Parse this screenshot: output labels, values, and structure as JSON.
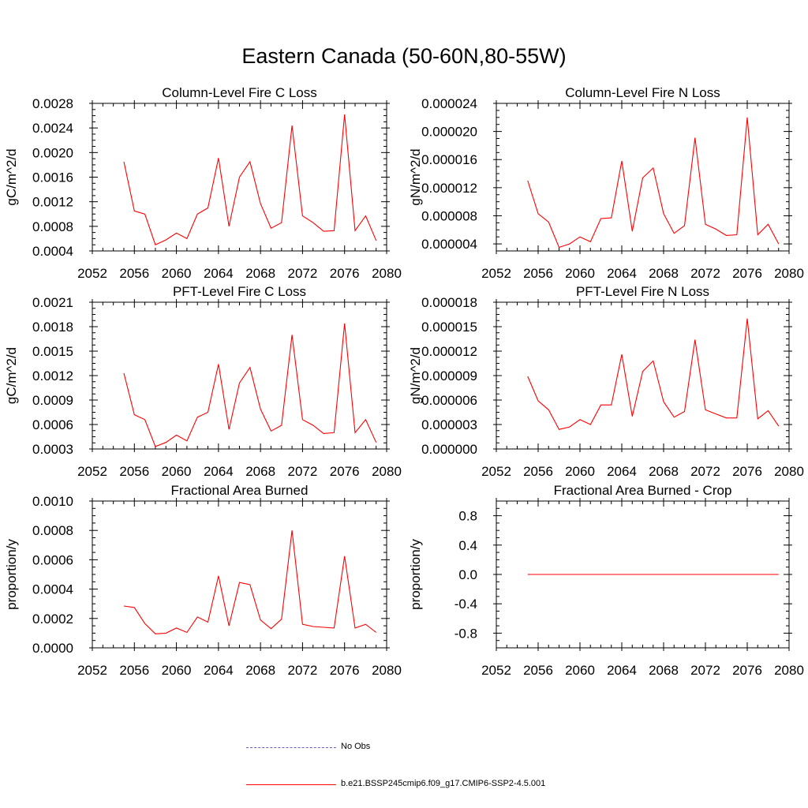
{
  "title": "Eastern Canada (50-60N,80-55W)",
  "series_color": "#ff0000",
  "obs_color": "#6060c0",
  "legend": {
    "obs_label": "No Obs",
    "model_label": "b.e21.BSSP245cmip6.f09_g17.CMIP6-SSP2-4.5.001"
  },
  "chart_data": [
    {
      "type": "line",
      "title": "Column-Level Fire C Loss",
      "ylabel": "gC/m^2/d",
      "xlim": [
        2052,
        2080
      ],
      "x_ticks": [
        "2052",
        "2056",
        "2060",
        "2064",
        "2068",
        "2072",
        "2076",
        "2080"
      ],
      "ylim": [
        0.0004,
        0.0028
      ],
      "y_ticks": [
        "0.0004",
        "0.0008",
        "0.0012",
        "0.0016",
        "0.0020",
        "0.0024",
        "0.0028"
      ],
      "x": [
        2055,
        2056,
        2057,
        2058,
        2059,
        2060,
        2061,
        2062,
        2063,
        2064,
        2065,
        2066,
        2067,
        2068,
        2069,
        2070,
        2071,
        2072,
        2073,
        2074,
        2075,
        2076,
        2077,
        2078,
        2079
      ],
      "series": [
        {
          "values": [
            0.00185,
            0.00105,
            0.001,
            0.0005,
            0.00058,
            0.00069,
            0.0006,
            0.001,
            0.0011,
            0.00191,
            0.0008,
            0.0016,
            0.00185,
            0.00117,
            0.00077,
            0.00086,
            0.00244,
            0.00097,
            0.00086,
            0.00072,
            0.00073,
            0.00262,
            0.00073,
            0.00097,
            0.00057
          ]
        }
      ]
    },
    {
      "type": "line",
      "title": "Column-Level Fire N Loss",
      "ylabel": "gN/m^2/d",
      "xlim": [
        2052,
        2080
      ],
      "x_ticks": [
        "2052",
        "2056",
        "2060",
        "2064",
        "2068",
        "2072",
        "2076",
        "2080"
      ],
      "ylim": [
        3e-06,
        2.4e-05
      ],
      "y_ticks": [
        "0.000004",
        "0.000008",
        "0.000012",
        "0.000016",
        "0.000020",
        "0.000024"
      ],
      "x": [
        2055,
        2056,
        2057,
        2058,
        2059,
        2060,
        2061,
        2062,
        2063,
        2064,
        2065,
        2066,
        2067,
        2068,
        2069,
        2070,
        2071,
        2072,
        2073,
        2074,
        2075,
        2076,
        2077,
        2078,
        2079
      ],
      "series": [
        {
          "values": [
            1.3e-05,
            8.3e-06,
            7.1e-06,
            3.5e-06,
            4e-06,
            5e-06,
            4.3e-06,
            7.6e-06,
            7.7e-06,
            1.58e-05,
            5.8e-06,
            1.34e-05,
            1.48e-05,
            8.3e-06,
            5.5e-06,
            6.6e-06,
            1.91e-05,
            6.8e-06,
            6.1e-06,
            5.2e-06,
            5.3e-06,
            2.2e-05,
            5.3e-06,
            6.8e-06,
            4e-06
          ]
        }
      ]
    },
    {
      "type": "line",
      "title": "PFT-Level Fire C Loss",
      "ylabel": "gC/m^2/d",
      "xlim": [
        2052,
        2080
      ],
      "x_ticks": [
        "2052",
        "2056",
        "2060",
        "2064",
        "2068",
        "2072",
        "2076",
        "2080"
      ],
      "ylim": [
        0.0003,
        0.0021
      ],
      "y_ticks": [
        "0.0003",
        "0.0006",
        "0.0009",
        "0.0012",
        "0.0015",
        "0.0018",
        "0.0021"
      ],
      "x": [
        2055,
        2056,
        2057,
        2058,
        2059,
        2060,
        2061,
        2062,
        2063,
        2064,
        2065,
        2066,
        2067,
        2068,
        2069,
        2070,
        2071,
        2072,
        2073,
        2074,
        2075,
        2076,
        2077,
        2078,
        2079
      ],
      "series": [
        {
          "values": [
            0.00123,
            0.00072,
            0.00066,
            0.00033,
            0.00038,
            0.00047,
            0.0004,
            0.00069,
            0.00075,
            0.00134,
            0.00054,
            0.00111,
            0.0013,
            0.00079,
            0.00052,
            0.00059,
            0.0017,
            0.00066,
            0.00059,
            0.00049,
            0.0005,
            0.00184,
            0.0005,
            0.00066,
            0.00038
          ]
        }
      ]
    },
    {
      "type": "line",
      "title": "PFT-Level Fire N Loss",
      "ylabel": "gN/m^2/d",
      "xlim": [
        2052,
        2080
      ],
      "x_ticks": [
        "2052",
        "2056",
        "2060",
        "2064",
        "2068",
        "2072",
        "2076",
        "2080"
      ],
      "ylim": [
        0.0,
        1.8e-05
      ],
      "y_ticks": [
        "0.000000",
        "0.000003",
        "0.000006",
        "0.000009",
        "0.000012",
        "0.000015",
        "0.000018"
      ],
      "x": [
        2055,
        2056,
        2057,
        2058,
        2059,
        2060,
        2061,
        2062,
        2063,
        2064,
        2065,
        2066,
        2067,
        2068,
        2069,
        2070,
        2071,
        2072,
        2073,
        2074,
        2075,
        2076,
        2077,
        2078,
        2079
      ],
      "series": [
        {
          "values": [
            8.9e-06,
            5.9e-06,
            4.8e-06,
            2.4e-06,
            2.7e-06,
            3.6e-06,
            3e-06,
            5.4e-06,
            5.4e-06,
            1.16e-05,
            4e-06,
            9.5e-06,
            1.08e-05,
            5.8e-06,
            3.9e-06,
            4.6e-06,
            1.34e-05,
            4.8e-06,
            4.3e-06,
            3.8e-06,
            3.8e-06,
            1.6e-05,
            3.7e-06,
            4.7e-06,
            2.8e-06
          ]
        }
      ]
    },
    {
      "type": "line",
      "title": "Fractional Area Burned",
      "ylabel": "proportion/y",
      "xlim": [
        2052,
        2080
      ],
      "x_ticks": [
        "2052",
        "2056",
        "2060",
        "2064",
        "2068",
        "2072",
        "2076",
        "2080"
      ],
      "ylim": [
        0.0,
        0.001
      ],
      "y_ticks": [
        "0.0000",
        "0.0002",
        "0.0004",
        "0.0006",
        "0.0008",
        "0.0010"
      ],
      "x": [
        2055,
        2056,
        2057,
        2058,
        2059,
        2060,
        2061,
        2062,
        2063,
        2064,
        2065,
        2066,
        2067,
        2068,
        2069,
        2070,
        2071,
        2072,
        2073,
        2074,
        2075,
        2076,
        2077,
        2078,
        2079
      ],
      "series": [
        {
          "values": [
            0.000285,
            0.000275,
            0.000165,
            9.5e-05,
            0.0001,
            0.000135,
            0.000105,
            0.00021,
            0.000175,
            0.00049,
            0.00015,
            0.000445,
            0.00043,
            0.00019,
            0.00013,
            0.000195,
            0.0008,
            0.00016,
            0.000145,
            0.00014,
            0.000135,
            0.000625,
            0.000135,
            0.00016,
            0.000105
          ]
        }
      ]
    },
    {
      "type": "line",
      "title": "Fractional Area Burned - Crop",
      "ylabel": "proportion/y",
      "xlim": [
        2052,
        2080
      ],
      "x_ticks": [
        "2052",
        "2056",
        "2060",
        "2064",
        "2068",
        "2072",
        "2076",
        "2080"
      ],
      "ylim": [
        -1.0,
        1.0
      ],
      "y_ticks": [
        "-0.8",
        "-0.4",
        "0.0",
        "0.4",
        "0.8"
      ],
      "x": [
        2055,
        2056,
        2057,
        2058,
        2059,
        2060,
        2061,
        2062,
        2063,
        2064,
        2065,
        2066,
        2067,
        2068,
        2069,
        2070,
        2071,
        2072,
        2073,
        2074,
        2075,
        2076,
        2077,
        2078,
        2079
      ],
      "series": [
        {
          "values": [
            0,
            0,
            0,
            0,
            0,
            0,
            0,
            0,
            0,
            0,
            0,
            0,
            0,
            0,
            0,
            0,
            0,
            0,
            0,
            0,
            0,
            0,
            0,
            0,
            0
          ]
        }
      ]
    }
  ]
}
